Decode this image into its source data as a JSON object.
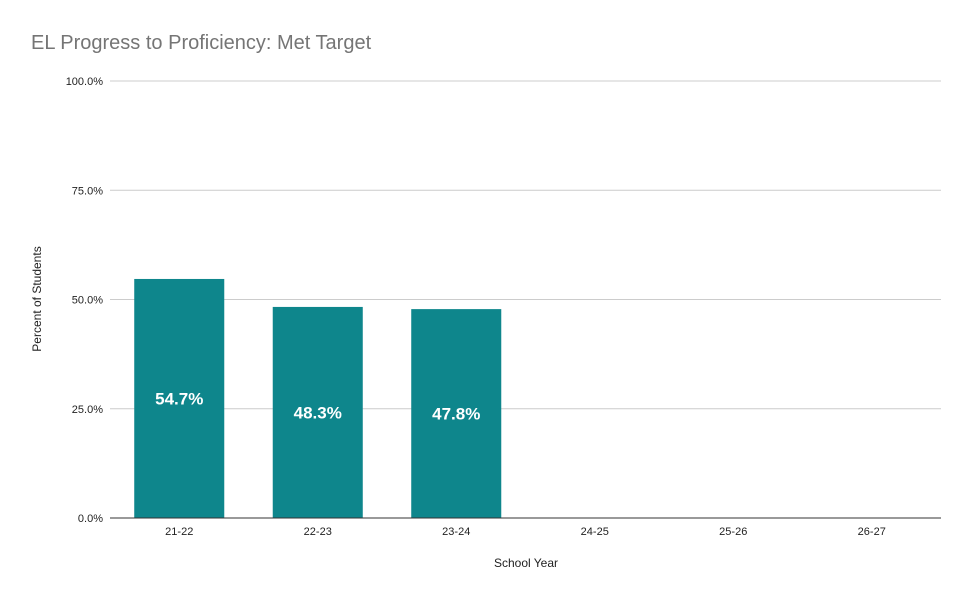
{
  "chart_data": {
    "type": "bar",
    "title": "EL Progress to Proficiency: Met Target",
    "xlabel": "School Year",
    "ylabel": "Percent of Students",
    "categories": [
      "21-22",
      "22-23",
      "23-24",
      "24-25",
      "25-26",
      "26-27"
    ],
    "values": [
      54.7,
      48.3,
      47.8,
      null,
      null,
      null
    ],
    "data_labels": [
      "54.7%",
      "48.3%",
      "47.8%",
      "",
      "",
      ""
    ],
    "ylim": [
      0,
      100
    ],
    "y_ticks": [
      0,
      25,
      50,
      75,
      100
    ],
    "y_tick_labels": [
      "0.0%",
      "25.0%",
      "50.0%",
      "75.0%",
      "100.0%"
    ],
    "grid": true,
    "legend": "none",
    "colors": {
      "bar": "#0e868c",
      "grid": "#cccccc",
      "axis": "#333333"
    }
  }
}
